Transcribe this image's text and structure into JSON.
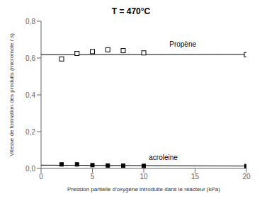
{
  "chart_data": {
    "type": "scatter",
    "title": "T = 470°C",
    "x_label": "Pression partielle d'oxygène introduite dans le réacteur (kPa)",
    "y_label": "Vitesse de formation des produits (micromole / s)",
    "xlim": [
      0,
      20
    ],
    "ylim": [
      0.0,
      0.8
    ],
    "xticks": [
      0,
      5,
      10,
      15,
      20
    ],
    "yticks": [
      {
        "value": 0.0,
        "label": "0,0"
      },
      {
        "value": 0.2,
        "label": "0,2"
      },
      {
        "value": 0.4,
        "label": "0,4"
      },
      {
        "value": 0.6,
        "label": "0,6"
      },
      {
        "value": 0.8,
        "label": "0,8"
      }
    ],
    "series": [
      {
        "type": "line",
        "color": "#000000",
        "x": [
          0.0,
          20.0
        ],
        "values": [
          0.618,
          0.62
        ]
      },
      {
        "type": "line",
        "color": "#000000",
        "x": [
          0.0,
          20.0
        ],
        "values": [
          0.018,
          0.013
        ]
      },
      {
        "type": "scatter",
        "marker": "hollow_square",
        "color": "#000000",
        "x": [
          2.0,
          3.5,
          5.0,
          6.5,
          8.0,
          10.0,
          20.0
        ],
        "values": [
          0.595,
          0.625,
          0.635,
          0.645,
          0.64,
          0.628,
          0.618
        ]
      },
      {
        "type": "scatter",
        "marker": "filled_square",
        "color": "#000000",
        "x": [
          2.0,
          3.5,
          5.0,
          6.5,
          8.0,
          10.0,
          20.0
        ],
        "values": [
          0.022,
          0.022,
          0.018,
          0.016,
          0.015,
          0.014,
          0.013
        ]
      }
    ],
    "annotations": [
      {
        "text": "Propène",
        "x": 12.5,
        "y": 0.655,
        "color": "#000000"
      },
      {
        "text": "acroleine",
        "x": 10.5,
        "y": 0.04,
        "color": "#000000"
      }
    ]
  }
}
